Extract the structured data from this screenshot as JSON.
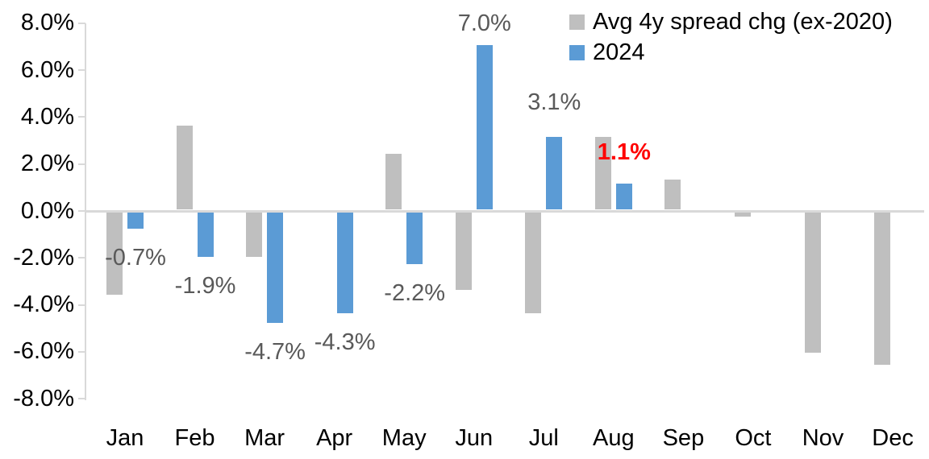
{
  "chart_data": {
    "type": "bar",
    "title": "",
    "categories": [
      "Jan",
      "Feb",
      "Mar",
      "Apr",
      "May",
      "Jun",
      "Jul",
      "Aug",
      "Sep",
      "Oct",
      "Nov",
      "Dec"
    ],
    "series": [
      {
        "name": "Avg 4y spread chg (ex-2020)",
        "color": "#BFBFBF",
        "values": [
          -3.5,
          3.6,
          -1.9,
          0.0,
          2.4,
          -3.3,
          -4.3,
          3.1,
          1.3,
          -0.2,
          -6.0,
          -6.5
        ]
      },
      {
        "name": "2024",
        "color": "#5B9BD5",
        "values": [
          -0.7,
          -1.9,
          -4.7,
          -4.3,
          -2.2,
          7.0,
          3.1,
          1.1,
          null,
          null,
          null,
          null
        ]
      }
    ],
    "ylim": [
      -8,
      8
    ],
    "y_tick_step": 2,
    "y_tick_labels": [
      "8.0%",
      "6.0%",
      "4.0%",
      "2.0%",
      "0.0%",
      "-2.0%",
      "-4.0%",
      "-6.0%",
      "-8.0%"
    ],
    "grid": "zero-line-only",
    "legend_position": "top-right",
    "axis_line_color": "#D9D9D9",
    "default_label_color": "#595959",
    "highlight_color": "#FF0000",
    "data_labels": [
      {
        "category": "Jan",
        "series": "2024",
        "text": "-0.7%",
        "color": "#595959",
        "bold": false,
        "placement": "below",
        "gap": 18
      },
      {
        "category": "Feb",
        "series": "2024",
        "text": "-1.9%",
        "color": "#595959",
        "bold": false,
        "placement": "below",
        "gap": 18
      },
      {
        "category": "Mar",
        "series": "2024",
        "text": "-4.7%",
        "color": "#595959",
        "bold": false,
        "placement": "below",
        "gap": 18
      },
      {
        "category": "Apr",
        "series": "2024",
        "text": "-4.3%",
        "color": "#595959",
        "bold": false,
        "placement": "below",
        "gap": 18
      },
      {
        "category": "May",
        "series": "2024",
        "text": "-2.2%",
        "color": "#595959",
        "bold": false,
        "placement": "below",
        "gap": 18
      },
      {
        "category": "Jun",
        "series": "2024",
        "text": "7.0%",
        "color": "#595959",
        "bold": false,
        "placement": "above",
        "gap": 8
      },
      {
        "category": "Jul",
        "series": "2024",
        "text": "3.1%",
        "color": "#595959",
        "bold": false,
        "placement": "above",
        "gap": 24
      },
      {
        "category": "Aug",
        "series": "2024",
        "text": "1.1%",
        "color": "#FF0000",
        "bold": true,
        "placement": "above",
        "gap": 20
      }
    ]
  }
}
